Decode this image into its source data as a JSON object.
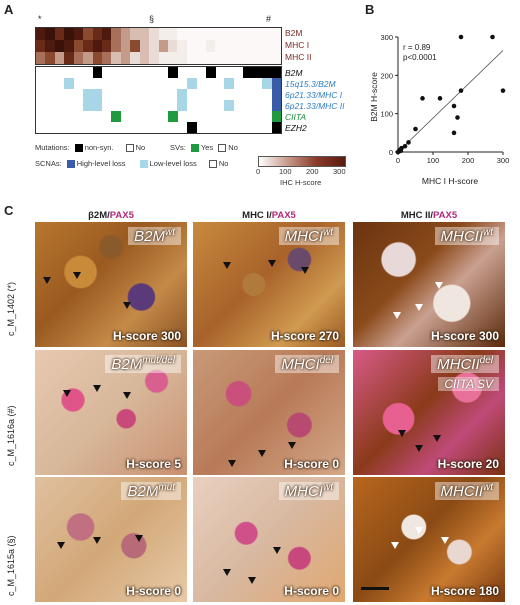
{
  "panel_a": {
    "letter": "A",
    "markers": {
      "star": "*",
      "section": "§",
      "hash": "#"
    },
    "ihc_rows": [
      "B2M",
      "MHC I",
      "MHC II"
    ],
    "gene_rows": [
      {
        "label": "B2M",
        "color": "black"
      },
      {
        "label": "15q15.3/B2M",
        "color": "blue"
      },
      {
        "label": "6p21.33/MHC I",
        "color": "blue"
      },
      {
        "label": "6p21.33/MHC II",
        "color": "blue"
      },
      {
        "label": "CIITA",
        "color": "green"
      },
      {
        "label": "EZH2",
        "color": "black"
      }
    ],
    "legend": {
      "mutations": "Mutations:",
      "non_syn": "non-syn.",
      "no": "No",
      "svs": "SVs:",
      "yes": "Yes",
      "scnas": "SCNAs:",
      "high_loss": "High-level loss",
      "low_loss": "Low-level loss",
      "colorbar_ticks": [
        "0",
        "100",
        "200",
        "300"
      ],
      "colorbar_label": "IHC H-score"
    },
    "colors": {
      "black": "#000000",
      "high_loss": "#3a5ba8",
      "low_loss": "#a7d6e6",
      "sv": "#1f9a3e",
      "ihc_high": "#5a1a12"
    }
  },
  "panel_b": {
    "letter": "B",
    "chart_data": {
      "type": "scatter",
      "xlabel": "MHC I H-score",
      "ylabel": "B2M H-score",
      "xticks": [
        "0",
        "100",
        "200",
        "300"
      ],
      "yticks": [
        "0",
        "100",
        "200",
        "300"
      ],
      "xlim": [
        0,
        300
      ],
      "ylim": [
        0,
        300
      ],
      "annotation": [
        "r = 0.89",
        "p<0.0001"
      ],
      "points": [
        {
          "x": 0,
          "y": 0
        },
        {
          "x": 3,
          "y": 2
        },
        {
          "x": 5,
          "y": 5
        },
        {
          "x": 8,
          "y": 3
        },
        {
          "x": 10,
          "y": 10
        },
        {
          "x": 20,
          "y": 15
        },
        {
          "x": 30,
          "y": 25
        },
        {
          "x": 50,
          "y": 60
        },
        {
          "x": 70,
          "y": 140
        },
        {
          "x": 120,
          "y": 140
        },
        {
          "x": 160,
          "y": 120
        },
        {
          "x": 160,
          "y": 50
        },
        {
          "x": 170,
          "y": 90
        },
        {
          "x": 180,
          "y": 300
        },
        {
          "x": 180,
          "y": 160
        },
        {
          "x": 270,
          "y": 300
        },
        {
          "x": 300,
          "y": 160
        }
      ]
    }
  },
  "panel_c": {
    "letter": "C",
    "columns": [
      {
        "marker": "β2M",
        "slash": "/",
        "pax": "PAX5"
      },
      {
        "marker": "MHC I",
        "slash": "/",
        "pax": "PAX5"
      },
      {
        "marker": "MHC II",
        "slash": "/",
        "pax": "PAX5"
      }
    ],
    "rows": [
      {
        "label": "c_M_1402 (*)",
        "tiles": [
          {
            "gene": "B2M",
            "status": "wt",
            "second": "",
            "hscore": "H-score 300"
          },
          {
            "gene": "MHCI",
            "status": "wt",
            "second": "",
            "hscore": "H-score 270"
          },
          {
            "gene": "MHCII",
            "status": "wt",
            "second": "",
            "hscore": "H-score 300"
          }
        ]
      },
      {
        "label": "c_M_1616a (#)",
        "tiles": [
          {
            "gene": "B2M",
            "status": "mut/del",
            "second": "",
            "hscore": "H-score 5"
          },
          {
            "gene": "MHCI",
            "status": "del",
            "second": "",
            "hscore": "H-score 0"
          },
          {
            "gene": "MHCII",
            "status": "del",
            "second": "CIITA SV",
            "hscore": "H-score 20"
          }
        ]
      },
      {
        "label": "c_M_1615a (§)",
        "tiles": [
          {
            "gene": "B2M",
            "status": "mut",
            "second": "",
            "hscore": "H-score 0"
          },
          {
            "gene": "MHCI",
            "status": "wt",
            "second": "",
            "hscore": "H-score 0"
          },
          {
            "gene": "MHCII",
            "status": "wt",
            "second": "",
            "hscore": "H-score 180"
          }
        ]
      }
    ]
  }
}
